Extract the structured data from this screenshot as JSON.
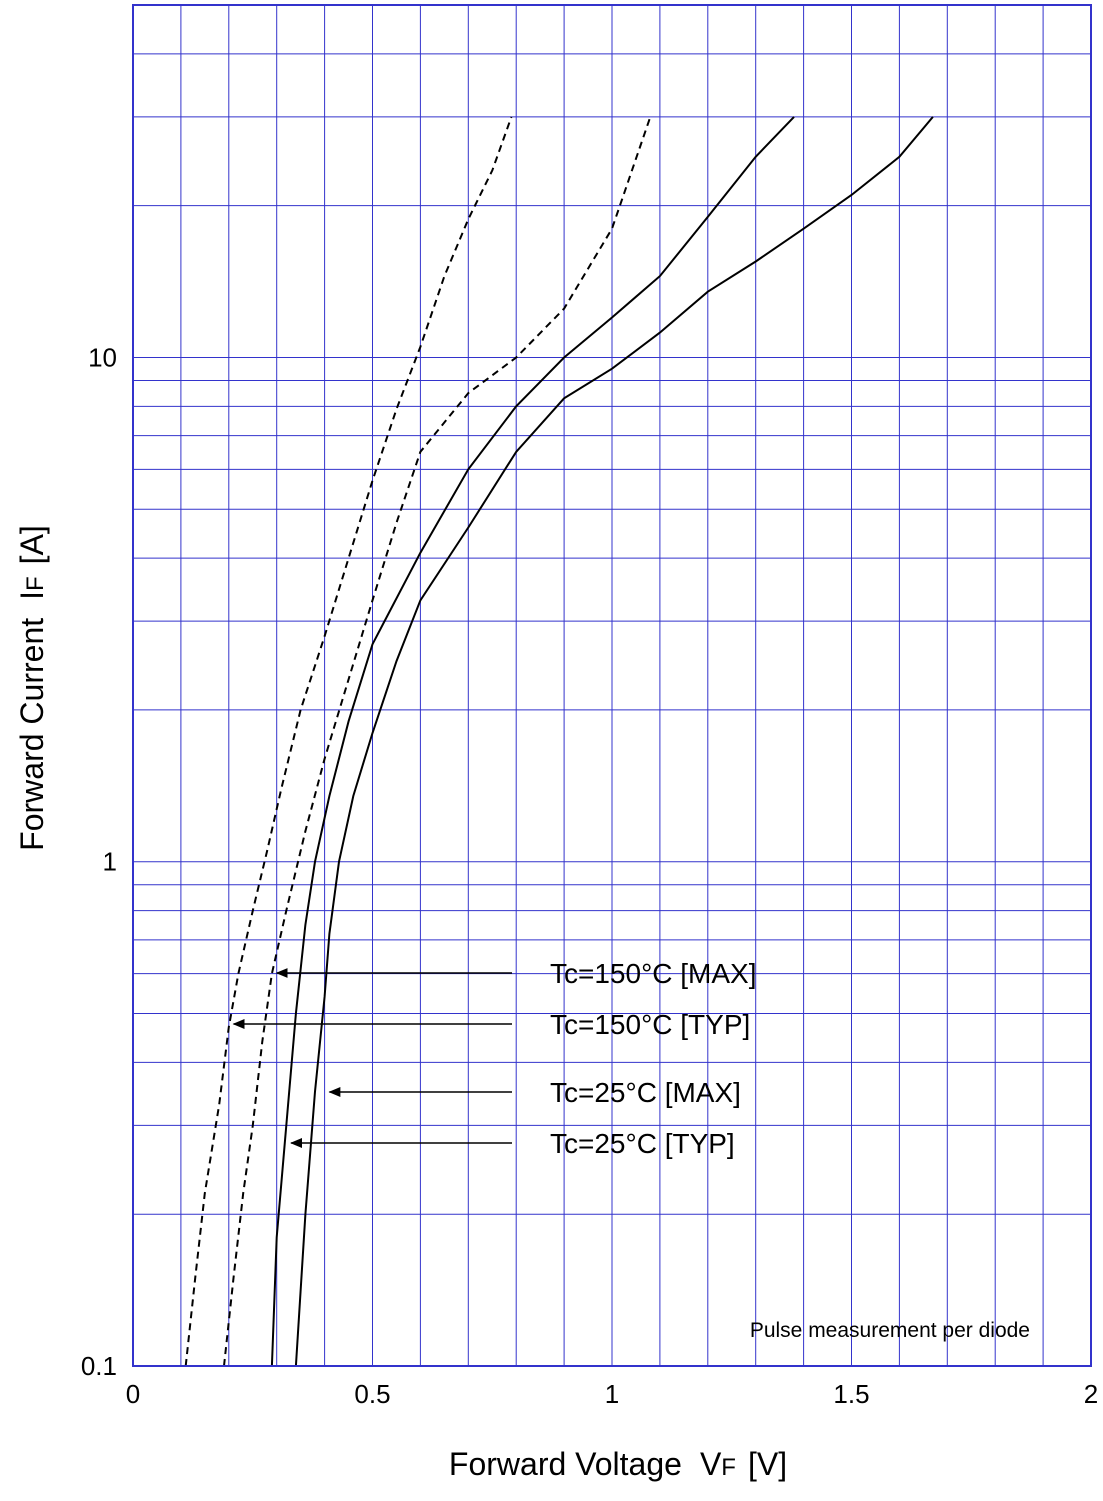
{
  "chart_data": {
    "type": "line",
    "title": "",
    "xlabel": {
      "main": "Forward Voltage",
      "var": "V",
      "sub": "F",
      "unit": "[V]"
    },
    "ylabel": {
      "main": "Forward Current",
      "var": "I",
      "sub": "F",
      "unit": "[A]"
    },
    "xlim": [
      0,
      2
    ],
    "ylim": [
      0.1,
      50
    ],
    "yscale": "log",
    "grid": true,
    "grid_color": "#3333cc",
    "x_ticks": [
      {
        "value": 0,
        "label": "0"
      },
      {
        "value": 0.5,
        "label": "0.5"
      },
      {
        "value": 1,
        "label": "1"
      },
      {
        "value": 1.5,
        "label": "1.5"
      },
      {
        "value": 2,
        "label": "2"
      }
    ],
    "y_ticks": [
      {
        "value": 0.1,
        "label": "0.1"
      },
      {
        "value": 1,
        "label": "1"
      },
      {
        "value": 10,
        "label": "10"
      }
    ],
    "note": "Pulse measurement per diode",
    "series": [
      {
        "name": "Tc=150°C [MAX]",
        "style": "dashed",
        "points": [
          [
            0.11,
            0.1
          ],
          [
            0.13,
            0.15
          ],
          [
            0.15,
            0.22
          ],
          [
            0.18,
            0.33
          ],
          [
            0.2,
            0.47
          ],
          [
            0.22,
            0.6
          ],
          [
            0.25,
            0.8
          ],
          [
            0.28,
            1.05
          ],
          [
            0.31,
            1.4
          ],
          [
            0.35,
            2.0
          ],
          [
            0.4,
            2.8
          ],
          [
            0.45,
            4.0
          ],
          [
            0.5,
            5.7
          ],
          [
            0.55,
            7.9
          ],
          [
            0.6,
            10.5
          ],
          [
            0.65,
            14.5
          ],
          [
            0.7,
            18.8
          ],
          [
            0.75,
            23.5
          ],
          [
            0.79,
            30
          ]
        ]
      },
      {
        "name": "Tc=150°C [TYP]",
        "style": "dashed",
        "points": [
          [
            0.19,
            0.1
          ],
          [
            0.21,
            0.15
          ],
          [
            0.23,
            0.22
          ],
          [
            0.25,
            0.3
          ],
          [
            0.27,
            0.44
          ],
          [
            0.29,
            0.6
          ],
          [
            0.32,
            0.8
          ],
          [
            0.36,
            1.15
          ],
          [
            0.4,
            1.6
          ],
          [
            0.45,
            2.3
          ],
          [
            0.5,
            3.3
          ],
          [
            0.55,
            4.7
          ],
          [
            0.6,
            6.5
          ],
          [
            0.7,
            8.5
          ],
          [
            0.8,
            10
          ],
          [
            0.9,
            12.5
          ],
          [
            1.0,
            18
          ],
          [
            1.08,
            30
          ]
        ]
      },
      {
        "name": "Tc=25°C [MAX]",
        "style": "solid",
        "points": [
          [
            0.34,
            0.1
          ],
          [
            0.36,
            0.2
          ],
          [
            0.38,
            0.35
          ],
          [
            0.4,
            0.54
          ],
          [
            0.41,
            0.72
          ],
          [
            0.43,
            1.0
          ],
          [
            0.46,
            1.35
          ],
          [
            0.5,
            1.8
          ],
          [
            0.55,
            2.5
          ],
          [
            0.6,
            3.3
          ],
          [
            0.7,
            4.6
          ],
          [
            0.8,
            6.5
          ],
          [
            0.9,
            8.3
          ],
          [
            1.0,
            9.5
          ],
          [
            1.1,
            11.2
          ],
          [
            1.2,
            13.5
          ],
          [
            1.3,
            15.5
          ],
          [
            1.4,
            18
          ],
          [
            1.5,
            21
          ],
          [
            1.6,
            25
          ],
          [
            1.67,
            30
          ]
        ]
      },
      {
        "name": "Tc=25°C [TYP]",
        "style": "solid",
        "points": [
          [
            0.29,
            0.1
          ],
          [
            0.3,
            0.18
          ],
          [
            0.32,
            0.3
          ],
          [
            0.34,
            0.5
          ],
          [
            0.36,
            0.75
          ],
          [
            0.38,
            1.0
          ],
          [
            0.41,
            1.35
          ],
          [
            0.45,
            1.9
          ],
          [
            0.5,
            2.7
          ],
          [
            0.6,
            4.1
          ],
          [
            0.7,
            6.0
          ],
          [
            0.8,
            8.0
          ],
          [
            0.9,
            10.0
          ],
          [
            1.0,
            12.0
          ],
          [
            1.1,
            14.5
          ],
          [
            1.2,
            19
          ],
          [
            1.3,
            25
          ],
          [
            1.38,
            30
          ]
        ]
      }
    ],
    "annotations": [
      {
        "label": "Tc=150°C [MAX]",
        "arrow_to": [
          0.3,
          0.6
        ]
      },
      {
        "label": "Tc=150°C [TYP]",
        "arrow_to": [
          0.21,
          0.5
        ]
      },
      {
        "label": "Tc=25°C [MAX]",
        "arrow_to": [
          0.41,
          0.36
        ]
      },
      {
        "label": "Tc=25°C [TYP]",
        "arrow_to": [
          0.33,
          0.28
        ]
      }
    ]
  }
}
